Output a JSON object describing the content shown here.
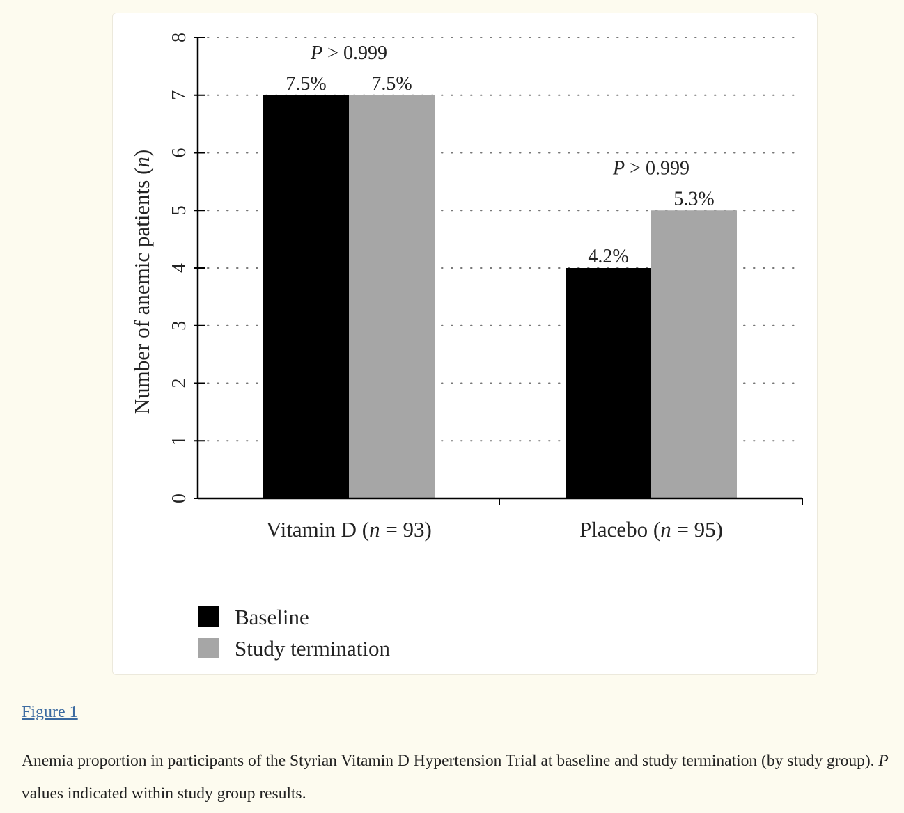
{
  "chart_data": {
    "type": "bar",
    "categories": [
      "Vitamin D (n = 93)",
      "Placebo (n = 95)"
    ],
    "category_parts": [
      {
        "prefix": "Vitamin D (",
        "italic": "n",
        "suffix": " = 93)"
      },
      {
        "prefix": "Placebo (",
        "italic": "n",
        "suffix": " = 95)"
      }
    ],
    "series": [
      {
        "name": "Baseline",
        "color": "#000000",
        "values": [
          7,
          4
        ],
        "labels": [
          "7.5%",
          "4.2%"
        ]
      },
      {
        "name": "Study termination",
        "color": "#a6a6a6",
        "values": [
          7,
          5
        ],
        "labels": [
          "7.5%",
          "5.3%"
        ]
      }
    ],
    "p_values": [
      "P > 0.999",
      "P > 0.999"
    ],
    "p_parts": [
      {
        "italic": "P",
        "rest": " > 0.999"
      },
      {
        "italic": "P",
        "rest": " > 0.999"
      }
    ],
    "ylabel": "Number of anemic patients (n)",
    "ylabel_parts": {
      "prefix": "Number of anemic patients (",
      "italic": "n",
      "suffix": ")"
    },
    "ylim": [
      0,
      8
    ],
    "yticks": [
      0,
      1,
      2,
      3,
      4,
      5,
      6,
      7,
      8
    ],
    "grid": "dotted horizontal",
    "legend_position": "bottom-left"
  },
  "figure": {
    "link_text": "Figure 1",
    "caption_part1": "Anemia proportion in participants of the Styrian Vitamin D Hypertension Trial at baseline and study termination (by study group). ",
    "caption_italic": "P",
    "caption_part2": " values indicated within study group results."
  }
}
